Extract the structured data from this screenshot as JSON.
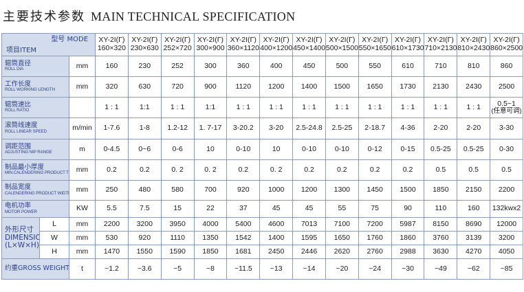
{
  "title": {
    "cn": "主要技术参数",
    "en": "MAIN TECHNICAL SPECIFICATION"
  },
  "header": {
    "model_label": "型号 MODE",
    "item_label": "项目ITEM",
    "models": [
      {
        "line1": "XY-2I(Γ)",
        "line2": "160×320"
      },
      {
        "line1": "XY-2I(Γ)",
        "line2": "230×630"
      },
      {
        "line1": "XY-2I(Γ)",
        "line2": "252×720"
      },
      {
        "line1": "XY-2I(Γ)",
        "line2": "300×900"
      },
      {
        "line1": "XY-2I(Γ)",
        "line2": "360×1120"
      },
      {
        "line1": "XY-2I(Γ)",
        "line2": "400×1200"
      },
      {
        "line1": "XY-2I(Γ)",
        "line2": "450×1400"
      },
      {
        "line1": "XY-2I(Γ)",
        "line2": "500×1500"
      },
      {
        "line1": "XY-2I(Γ)",
        "line2": "550×1650"
      },
      {
        "line1": "XY-2I(Γ)",
        "line2": "610×1730"
      },
      {
        "line1": "XY-2I(Γ)",
        "line2": "710×2130"
      },
      {
        "line1": "XY-2I(Γ)",
        "line2": "810×2430"
      },
      {
        "line1": "XY-2I(Γ)",
        "line2": "860×2500"
      }
    ]
  },
  "rows": [
    {
      "zh": "辊筒直径",
      "en": "Roll dia",
      "unit": "mm",
      "values": [
        "160",
        "230",
        "252",
        "300",
        "360",
        "400",
        "450",
        "500",
        "550",
        "610",
        "710",
        "810",
        "860"
      ]
    },
    {
      "zh": "工作长度",
      "en": "Roll working length",
      "unit": "mm",
      "values": [
        "320",
        "630",
        "720",
        "900",
        "1120",
        "1200",
        "1400",
        "1500",
        "1650",
        "1730",
        "2130",
        "2430",
        "2500"
      ]
    },
    {
      "zh": "辊筒速比",
      "en": "Roll ratio",
      "unit": "",
      "values": [
        "1 : 1",
        "1:1",
        "1 : 1",
        "1:1",
        "1 : 1",
        "1 : 1",
        "1 : 1",
        "1 : 1",
        "1 : 1",
        "1 : 1",
        "1 : 1",
        "1 : 1",
        "0.5~1"
      ],
      "note_last": "(任意可调)"
    },
    {
      "zh": "滚筒线速度",
      "en": "Roll linear speed",
      "unit": "m/min",
      "values": [
        "1-7.6",
        "1-8",
        "1.2-12",
        "1. 7-17",
        "3-20.2",
        "3-20",
        "2.5-24.8",
        "2.5-25",
        "2-18.7",
        "4-36",
        "2-20",
        "2-20",
        "3-30"
      ]
    },
    {
      "zh": "调距范围",
      "en": "Adjusting nip range",
      "unit": "m",
      "values": [
        "0-4.5",
        "0~6",
        "0-6",
        "10",
        "0-10",
        "10",
        "0-10",
        "0-10",
        "0-12",
        "0-15",
        "0.5-25",
        "0.5-25",
        "0-30"
      ]
    },
    {
      "zh": "制品最小厚度",
      "en": "Min.calendering product thickness",
      "unit": "mm",
      "values": [
        "0.2",
        "0.2",
        "0. 2",
        "0. 2",
        "0.2",
        "0. 2",
        "0.2",
        "0.2",
        "0.2",
        "0.2",
        "0.5",
        "0.5",
        "0.5"
      ]
    },
    {
      "zh": "制品宽度",
      "en": "Calendering product width",
      "unit": "mm",
      "values": [
        "250",
        "480",
        "580",
        "700",
        "920",
        "1000",
        "1200",
        "1300",
        "1450",
        "1500",
        "1850",
        "2150",
        "2200"
      ]
    },
    {
      "zh": "电机功率",
      "en": "Motor power",
      "unit": "KW",
      "values": [
        "5.5",
        "7.5",
        "15",
        "22",
        "37",
        "45",
        "45",
        "55",
        "75",
        "90",
        "110",
        "160",
        "132kwx2"
      ]
    }
  ],
  "dimensions": {
    "label_zh": "外形尺寸",
    "label_en": "DIMENSIONS",
    "label_sub": "(L×W×H)",
    "rows": [
      {
        "axis": "L",
        "unit": "mm",
        "values": [
          "2200",
          "3200",
          "3950",
          "4000",
          "5400",
          "4600",
          "7013",
          "7100",
          "7200",
          "5987",
          "8150",
          "8690",
          "12000"
        ]
      },
      {
        "axis": "W",
        "unit": "mm",
        "values": [
          "530",
          "920",
          "1110",
          "1350",
          "1542",
          "1400",
          "1595",
          "1650",
          "1760",
          "1860",
          "3760",
          "3139",
          "3200"
        ]
      },
      {
        "axis": "H",
        "unit": "mm",
        "values": [
          "1470",
          "1550",
          "1590",
          "1850",
          "1681",
          "2450",
          "2446",
          "2620",
          "2760",
          "2988",
          "3630",
          "4270",
          "4050"
        ]
      }
    ]
  },
  "weight": {
    "label": "约重GROSS WEIGHT",
    "unit": "t",
    "values": [
      "~1.2",
      "~3.6",
      "~5",
      "~8",
      "~11.5",
      "~13",
      "~14",
      "~20",
      "~24",
      "~30",
      "~49",
      "~62",
      "~85"
    ]
  }
}
